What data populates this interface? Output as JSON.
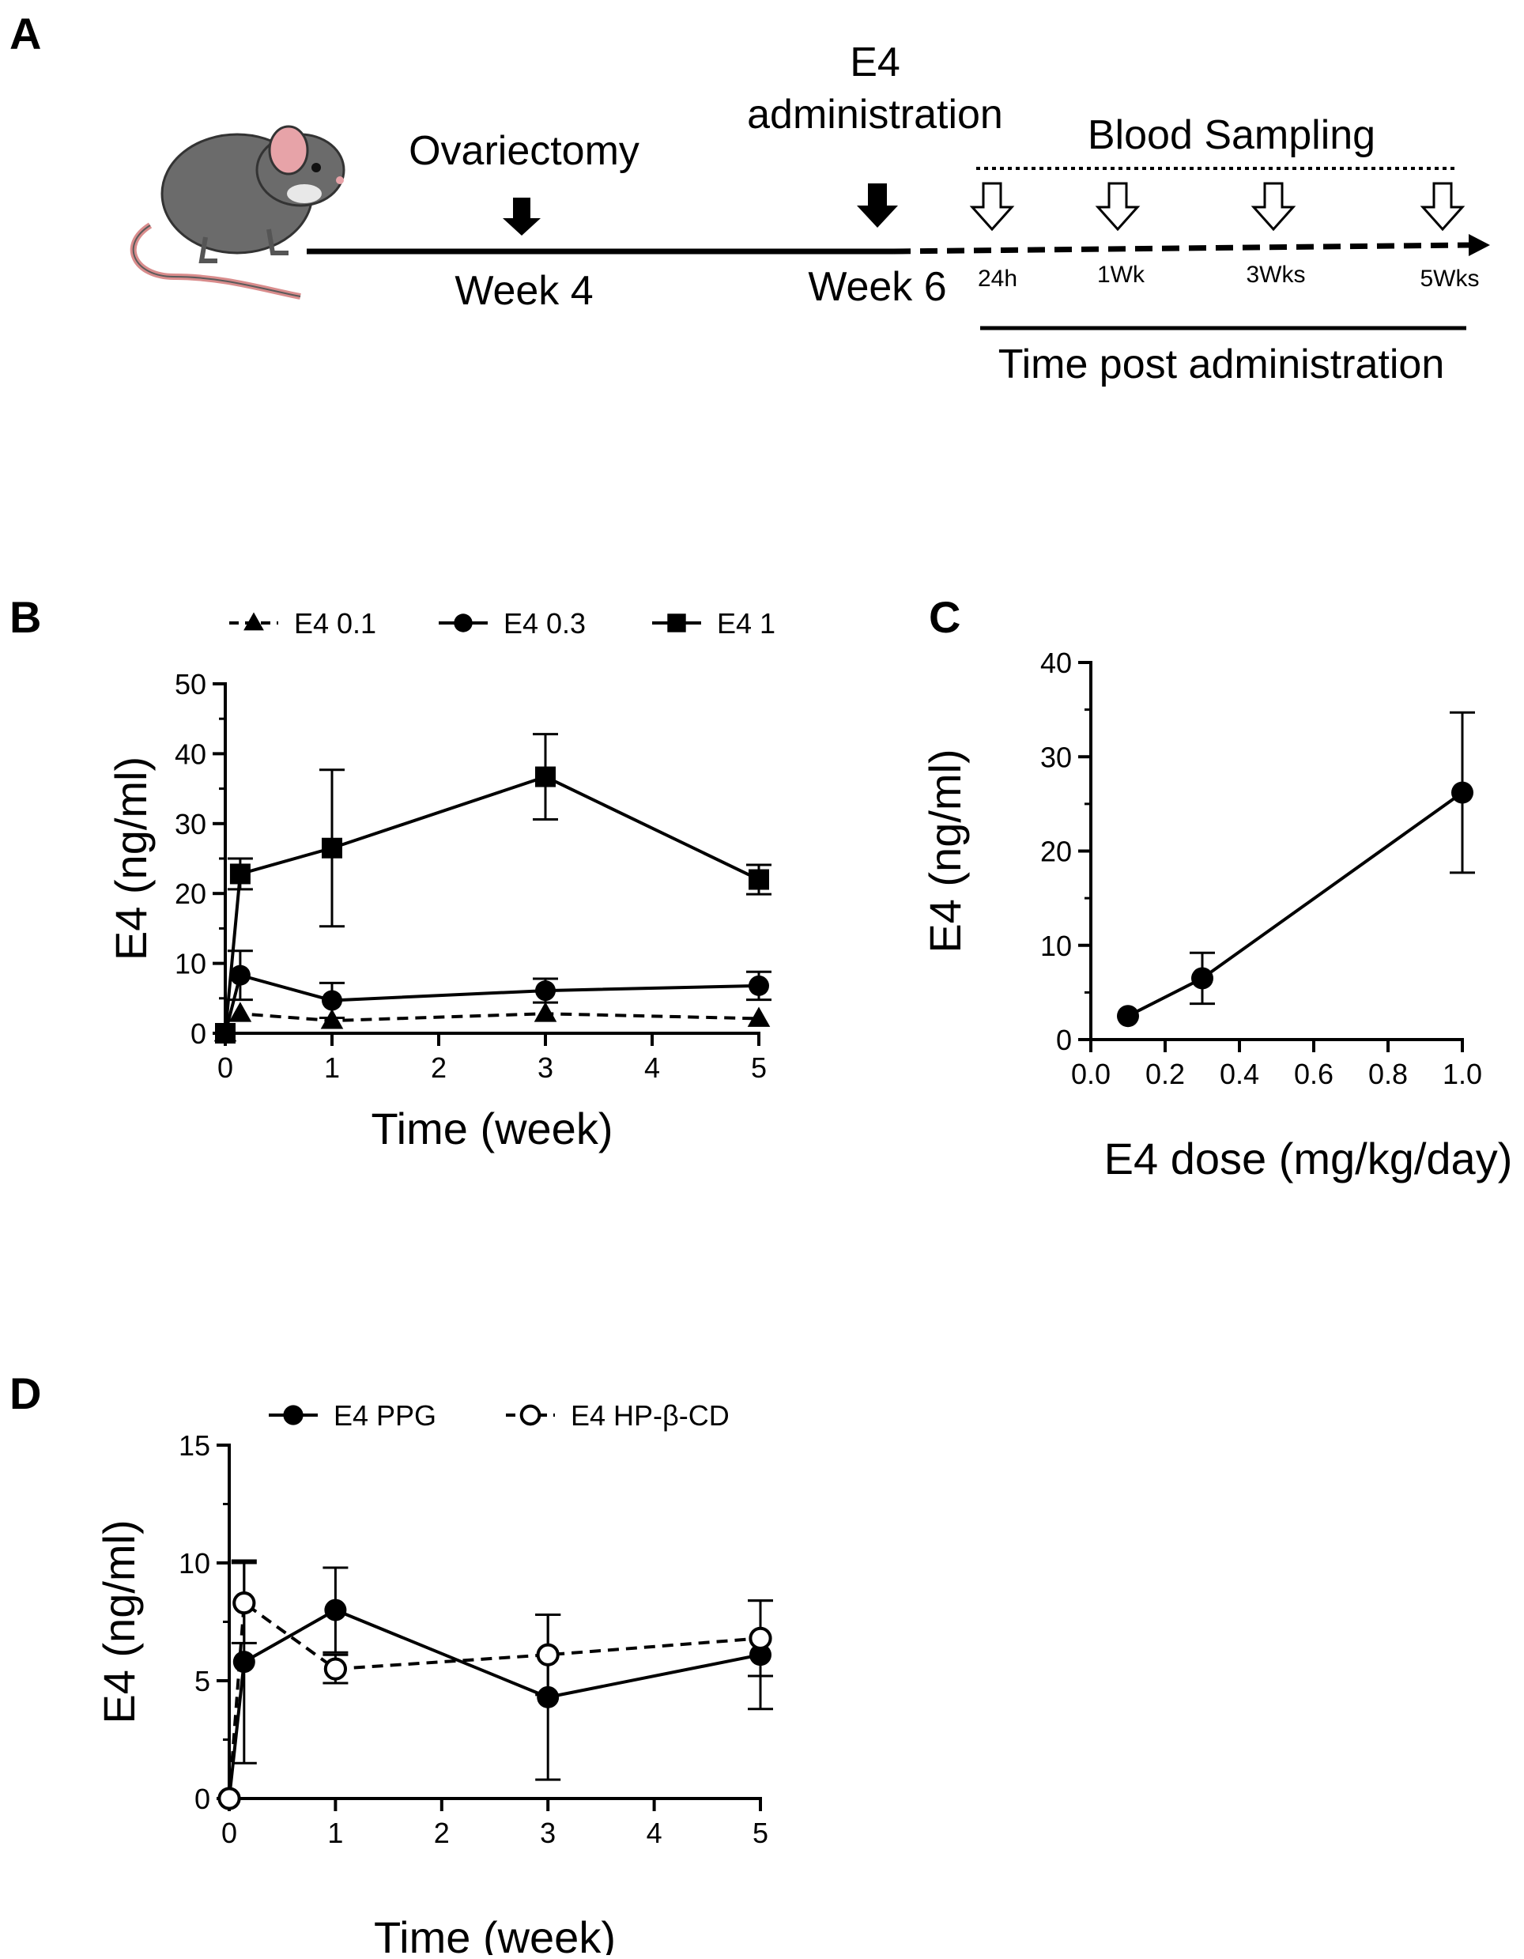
{
  "panelA": {
    "label": "A",
    "ovariectomy": "Ovariectomy",
    "week4": "Week 4",
    "e4_line1": "E4",
    "e4_line2": "administration",
    "week6": "Week 6",
    "blood_sampling": "Blood Sampling",
    "sample_times": [
      "24h",
      "1Wk",
      "3Wks",
      "5Wks"
    ],
    "time_post": "Time post administration"
  },
  "panelB": {
    "label": "B"
  },
  "panelC": {
    "label": "C"
  },
  "panelD": {
    "label": "D"
  },
  "chart_data": [
    {
      "id": "B",
      "type": "line",
      "xlabel": "Time (week)",
      "ylabel": "E4 (ng/ml)",
      "xlim": [
        0,
        5
      ],
      "ylim": [
        0,
        50
      ],
      "xticks": [
        0,
        1,
        2,
        3,
        4,
        5
      ],
      "yticks": [
        0,
        10,
        20,
        30,
        40,
        50
      ],
      "legend_position": "top",
      "series": [
        {
          "name": "E4 0.1",
          "marker": "triangle",
          "dashed": true,
          "x": [
            0,
            0.14,
            1,
            3,
            5
          ],
          "y": [
            0,
            2.8,
            1.8,
            2.8,
            2.1
          ],
          "err": [
            0,
            0,
            0,
            0,
            0
          ]
        },
        {
          "name": "E4 0.3",
          "marker": "circle",
          "dashed": false,
          "x": [
            0,
            0.14,
            1,
            3,
            5
          ],
          "y": [
            0,
            8.3,
            4.7,
            6.1,
            6.8
          ],
          "err": [
            0,
            3.5,
            2.5,
            1.7,
            2.0
          ]
        },
        {
          "name": "E4 1",
          "marker": "square",
          "dashed": false,
          "x": [
            0,
            0.14,
            1,
            3,
            5
          ],
          "y": [
            0,
            22.8,
            26.5,
            36.7,
            22.0
          ],
          "err": [
            0,
            2.2,
            11.2,
            6.1,
            2.1
          ]
        }
      ]
    },
    {
      "id": "C",
      "type": "line",
      "xlabel": "E4 dose (mg/kg/day)",
      "ylabel": "E4 (ng/ml)",
      "xlim": [
        0,
        1.0
      ],
      "ylim": [
        0,
        40
      ],
      "xticks": [
        "0.0",
        "0.2",
        "0.4",
        "0.6",
        "0.8",
        "1.0"
      ],
      "yticks": [
        0,
        10,
        20,
        30,
        40
      ],
      "series": [
        {
          "name": "E4",
          "marker": "circle",
          "dashed": false,
          "x": [
            0.1,
            0.3,
            1.0
          ],
          "y": [
            2.5,
            6.5,
            26.2
          ],
          "err": [
            0,
            2.7,
            8.5
          ]
        }
      ]
    },
    {
      "id": "D",
      "type": "line",
      "xlabel": "Time (week)",
      "ylabel": "E4 (ng/ml)",
      "xlim": [
        0,
        5
      ],
      "ylim": [
        0,
        15
      ],
      "xticks": [
        0,
        1,
        2,
        3,
        4,
        5
      ],
      "yticks": [
        0,
        5,
        10,
        15
      ],
      "legend_position": "top",
      "series": [
        {
          "name": "E4 PPG",
          "marker": "circle",
          "dashed": false,
          "x": [
            0,
            0.14,
            1,
            3,
            5
          ],
          "y": [
            0,
            5.8,
            8.0,
            4.3,
            6.1
          ],
          "err": [
            0,
            4.3,
            1.8,
            3.5,
            2.3
          ]
        },
        {
          "name": "E4 HP-β-CD",
          "marker": "circle-open",
          "dashed": true,
          "x": [
            0,
            0.14,
            1,
            3,
            5
          ],
          "y": [
            0,
            8.3,
            5.5,
            6.1,
            6.8
          ],
          "err": [
            0,
            1.7,
            0.6,
            1.7,
            1.6
          ]
        }
      ]
    }
  ]
}
